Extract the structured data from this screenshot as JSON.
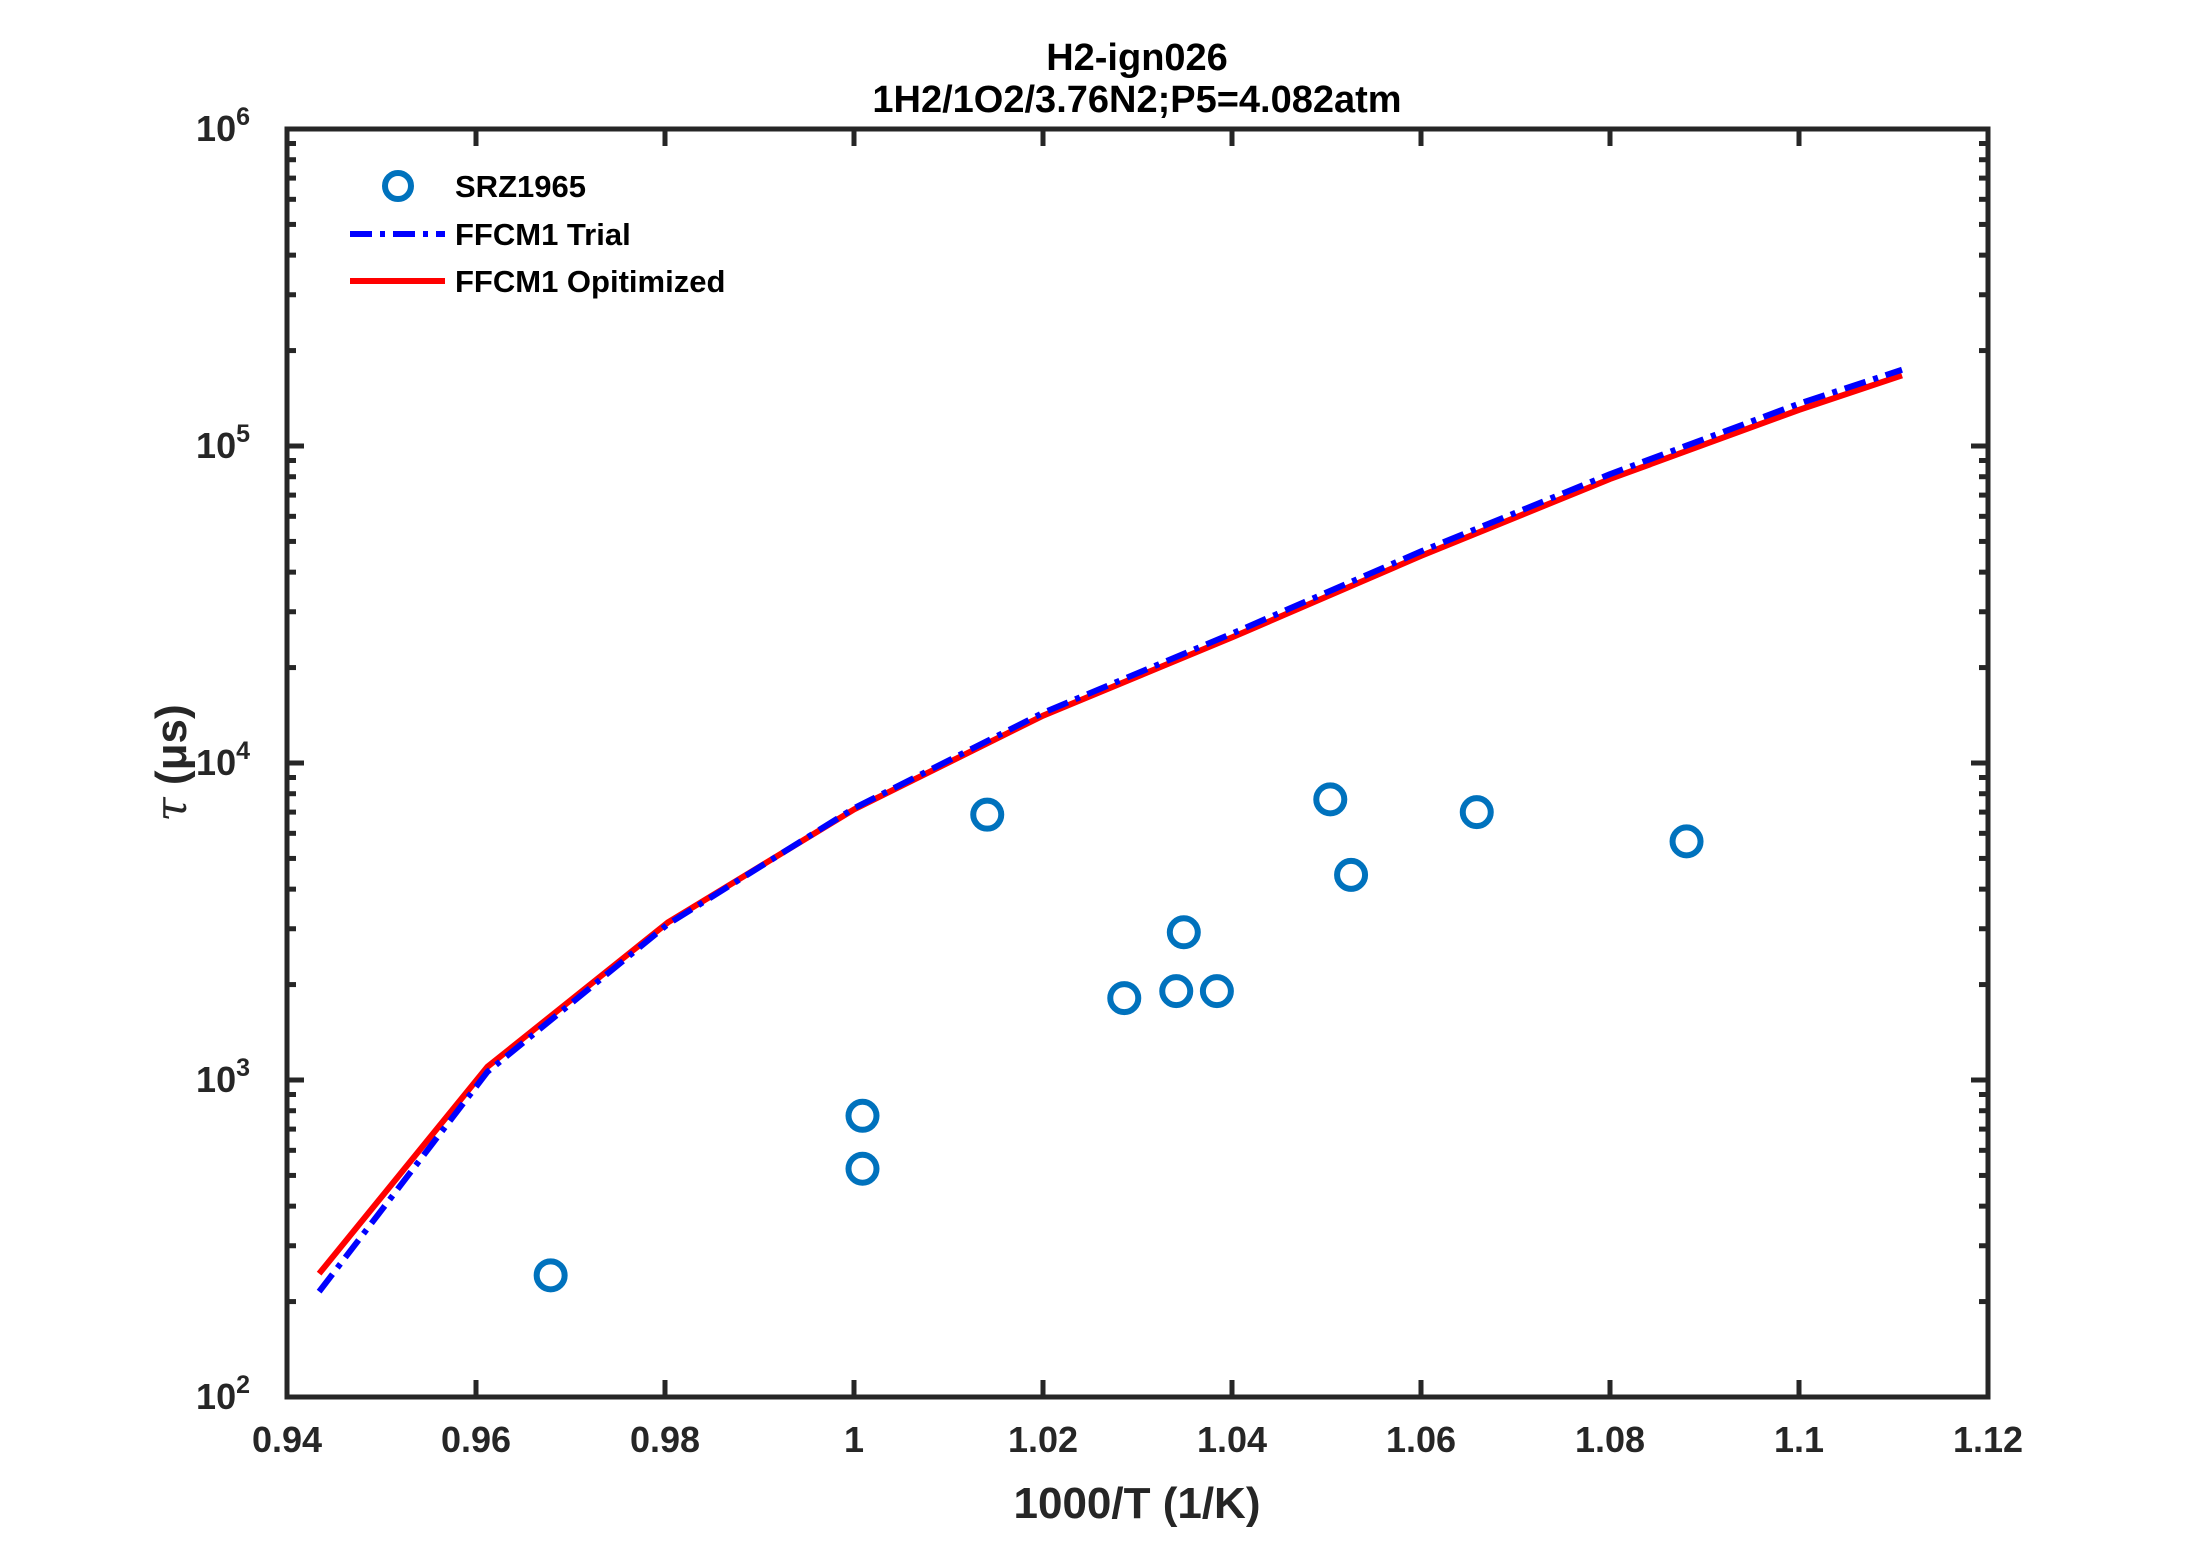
{
  "chart_data": {
    "type": "line",
    "title": [
      "H2-ign026",
      "1H2/1O2/3.76N2;P5=4.082atm"
    ],
    "xlabel": "1000/T (1/K)",
    "ylabel_symbol": "τ",
    "ylabel": "(μs)",
    "xlim": [
      0.94,
      1.12
    ],
    "ylim": [
      100,
      1000000
    ],
    "yscale": "log",
    "x_ticks": [
      0.94,
      0.96,
      0.98,
      1.0,
      1.02,
      1.04,
      1.06,
      1.08,
      1.1,
      1.12
    ],
    "x_tick_labels": [
      "0.94",
      "0.96",
      "0.98",
      "1",
      "1.02",
      "1.04",
      "1.06",
      "1.08",
      "1.1",
      "1.12"
    ],
    "y_ticks": [
      100,
      1000,
      10000,
      100000,
      1000000
    ],
    "y_tick_base": "10",
    "y_tick_exponents": [
      "2",
      "3",
      "4",
      "5",
      "6"
    ],
    "grid": false,
    "legend_position": "top-left",
    "series": [
      {
        "name": "SRZ1965",
        "style": "markers-circle",
        "color": "#0072BD",
        "x": [
          0.9679,
          1.0009,
          1.0009,
          1.0141,
          1.0286,
          1.0341,
          1.0349,
          1.0384,
          1.0504,
          1.0526,
          1.0659,
          1.0881
        ],
        "y": [
          242,
          771,
          525,
          6870,
          1813,
          1907,
          2924,
          1907,
          7680,
          4436,
          7000,
          5660
        ]
      },
      {
        "name": "FFCM1 Trial",
        "style": "dash-dot",
        "color": "#0000FF",
        "x": [
          0.9434,
          0.9612,
          0.9803,
          1.0,
          1.02,
          1.04,
          1.06,
          1.08,
          1.1,
          1.1109
        ],
        "y": [
          215,
          1060,
          3100,
          7200,
          14400,
          25600,
          46500,
          81500,
          136000,
          174000
        ]
      },
      {
        "name": "FFCM1 Opitimized",
        "style": "solid",
        "color": "#FF0000",
        "x": [
          0.9434,
          0.9612,
          0.9803,
          1.0,
          1.02,
          1.04,
          1.06,
          1.08,
          1.1,
          1.1109
        ],
        "y": [
          245,
          1100,
          3140,
          7140,
          14100,
          24900,
          45000,
          78700,
          130000,
          167000
        ]
      }
    ]
  }
}
